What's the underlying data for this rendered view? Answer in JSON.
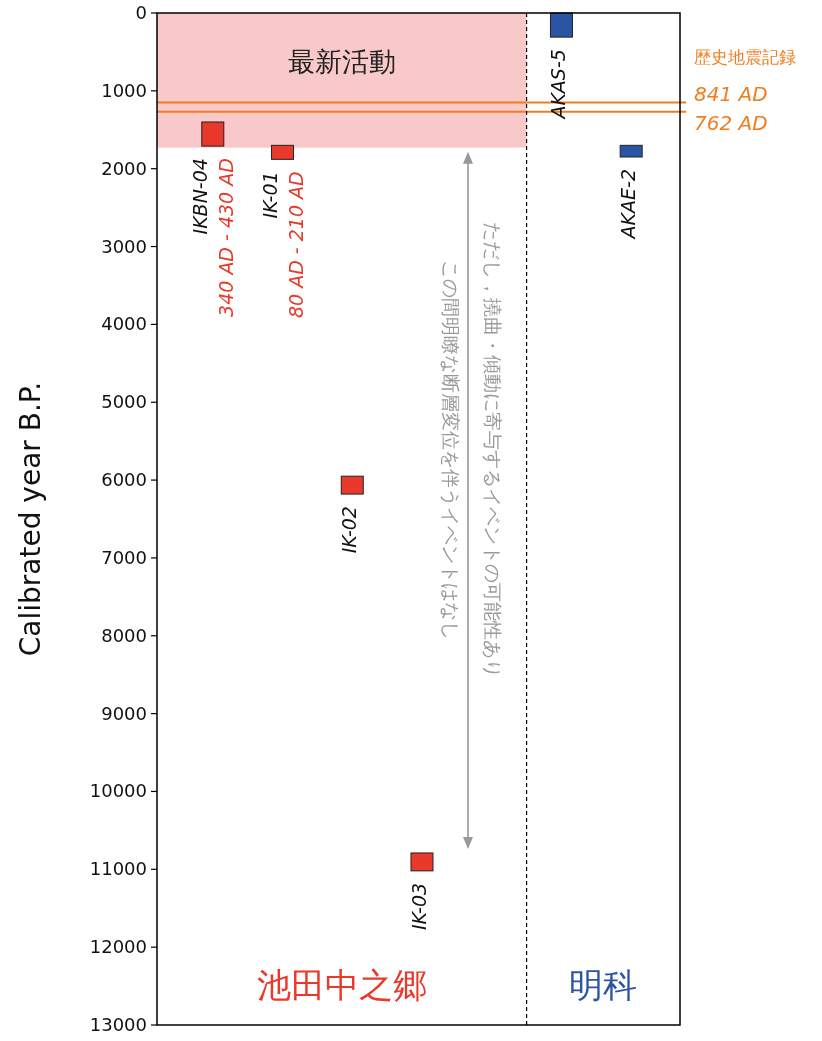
{
  "chart_data": {
    "type": "bar",
    "ylabel": "Calibrated year B.P.",
    "categories": [
      "IKBN-04",
      "IK-01",
      "IK-02",
      "IK-03",
      null,
      "AKAS-5",
      "AKAE-2"
    ],
    "values": [
      310,
      180,
      230,
      230,
      null,
      310,
      150
    ],
    "base": [
      1400,
      1700,
      5950,
      10790,
      null,
      0,
      1700
    ],
    "colors": [
      "#e8392b",
      "#e8392b",
      "#e8392b",
      "#e8392b",
      null,
      "#2a55a5",
      "#2a55a5"
    ],
    "ylim": [
      13000,
      0
    ],
    "yticks": [
      0,
      1000,
      2000,
      3000,
      4000,
      5000,
      6000,
      7000,
      8000,
      9000,
      10000,
      11000,
      12000,
      13000
    ],
    "grid": false,
    "bands": [
      {
        "axis": "y",
        "from": 0,
        "to": 1730,
        "label": "最新活動",
        "color": "#f9c9c9"
      }
    ],
    "ref_lines": [
      {
        "axis": "y",
        "value": 1150,
        "label": "841 AD",
        "color": "#f07d1e"
      },
      {
        "axis": "y",
        "value": 1270,
        "label": "762 AD",
        "color": "#f07d1e"
      }
    ],
    "annotations": [
      {
        "text": "340 AD - 430 AD",
        "x": "IKBN-04",
        "y": 1710
      },
      {
        "text": "80 AD - 210 AD",
        "x": "IK-01",
        "y": 1880
      },
      "この間明瞭な断層変位を伴うイベントはなし",
      "ただし，撓曲・傾動に寄与するイベントの可能性あり",
      "歴史地震記録",
      "池田中之郷",
      "明科"
    ]
  }
}
